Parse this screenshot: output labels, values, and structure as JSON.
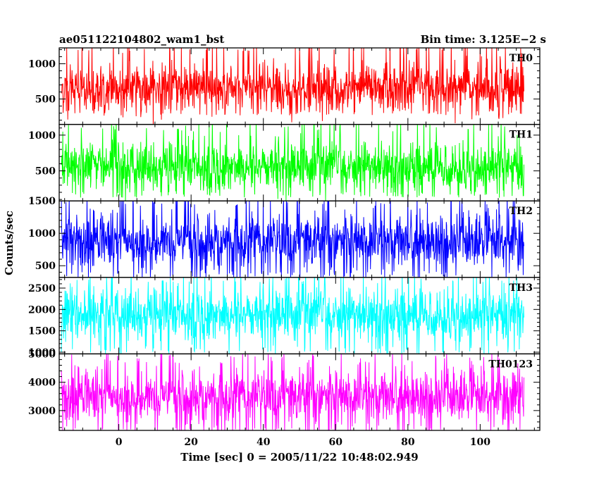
{
  "chart_data": {
    "type": "line",
    "title_left": "ae051122104802_wam1_bst",
    "title_right": "Bin time: 3.125E−2 s",
    "xlabel": "Time [sec] 0 = 2005/11/22 10:48:02.949",
    "ylabel": "Counts/sec",
    "xlim": [
      -16.5,
      116.5
    ],
    "data_xrange": [
      -15.9,
      112.1
    ],
    "x_ticks": [
      0,
      20,
      40,
      60,
      80,
      100
    ],
    "x_tick_labels": [
      "0",
      "20",
      "40",
      "60",
      "80",
      "100"
    ],
    "grid": false,
    "panels": [
      {
        "label": "TH0",
        "color": "#ff0000",
        "ylim": [
          140,
          1225
        ],
        "y_ticks": [
          500,
          1000
        ],
        "y_tick_labels": [
          "500",
          "1000"
        ],
        "mean": 650,
        "spread": [
          350,
          1225
        ]
      },
      {
        "label": "TH1",
        "color": "#00ff00",
        "ylim": [
          80,
          1150
        ],
        "y_ticks": [
          500,
          1000
        ],
        "y_tick_labels": [
          "500",
          "1000"
        ],
        "mean": 560,
        "spread": [
          210,
          1100
        ]
      },
      {
        "label": "TH2",
        "color": "#0000ff",
        "ylim": [
          320,
          1500
        ],
        "y_ticks": [
          500,
          1000,
          1500
        ],
        "y_tick_labels": [
          "500",
          "1000",
          "1500"
        ],
        "mean": 880,
        "spread": [
          400,
          1500
        ]
      },
      {
        "label": "TH3",
        "color": "#00ffff",
        "ylim": [
          960,
          2750
        ],
        "y_ticks": [
          1000,
          1500,
          2000,
          2500
        ],
        "y_tick_labels": [
          "1000",
          "1500",
          "2000",
          "2500"
        ],
        "mean": 1880,
        "spread": [
          1100,
          2700
        ]
      },
      {
        "label": "TH0123",
        "color": "#ff00ff",
        "ylim": [
          2300,
          5000
        ],
        "y_ticks": [
          3000,
          4000,
          5000
        ],
        "y_tick_labels": [
          "3000",
          "4000",
          "5000"
        ],
        "mean": 3500,
        "spread": [
          2380,
          4800
        ]
      }
    ]
  }
}
